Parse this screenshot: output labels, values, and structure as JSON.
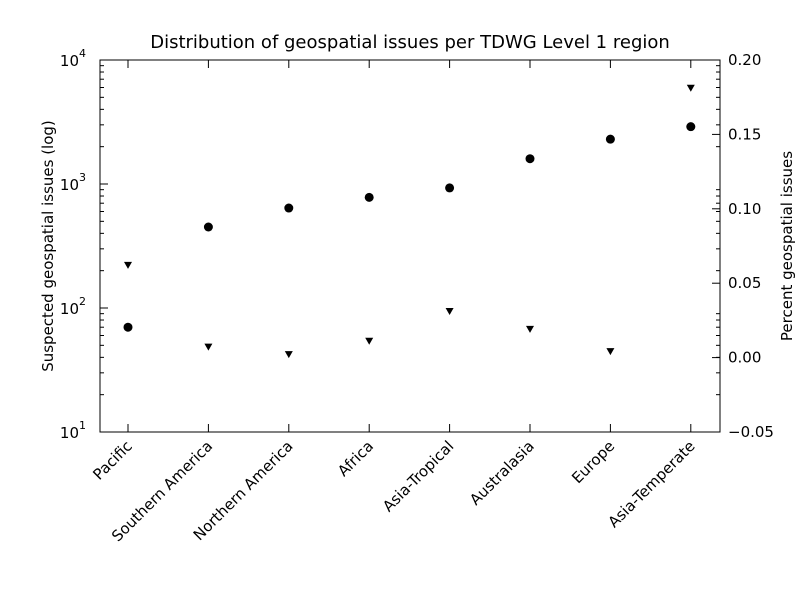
{
  "chart_data": {
    "type": "scatter",
    "title": "Distribution of geospatial issues per TDWG Level 1 region",
    "xlabel": "",
    "categories": [
      "Pacific",
      "Southern America",
      "Northern America",
      "Africa",
      "Asia-Tropical",
      "Australasia",
      "Europe",
      "Asia-Temperate"
    ],
    "left_axis": {
      "label": "Suspected geospatial issues (log)",
      "scale": "log",
      "ylim": [
        10,
        10000
      ],
      "ticks": [
        {
          "value": 10,
          "base": "10",
          "exp": "1"
        },
        {
          "value": 100,
          "base": "10",
          "exp": "2"
        },
        {
          "value": 1000,
          "base": "10",
          "exp": "3"
        },
        {
          "value": 10000,
          "base": "10",
          "exp": "4"
        }
      ]
    },
    "right_axis": {
      "label": "Percent geospatial issues",
      "scale": "linear",
      "ylim": [
        -0.05,
        0.2
      ],
      "ticks": [
        "−0.05",
        "0.00",
        "0.05",
        "0.10",
        "0.15",
        "0.20"
      ]
    },
    "series": [
      {
        "axis": "left",
        "marker": "circle",
        "color": "#000000",
        "values": [
          70,
          450,
          640,
          780,
          930,
          1600,
          2300,
          2900
        ]
      },
      {
        "axis": "right",
        "marker": "triangle-down",
        "color": "#000000",
        "values": [
          0.062,
          0.007,
          0.002,
          0.011,
          0.031,
          0.019,
          0.004,
          0.181
        ]
      }
    ],
    "grid": false,
    "legend": "none"
  }
}
